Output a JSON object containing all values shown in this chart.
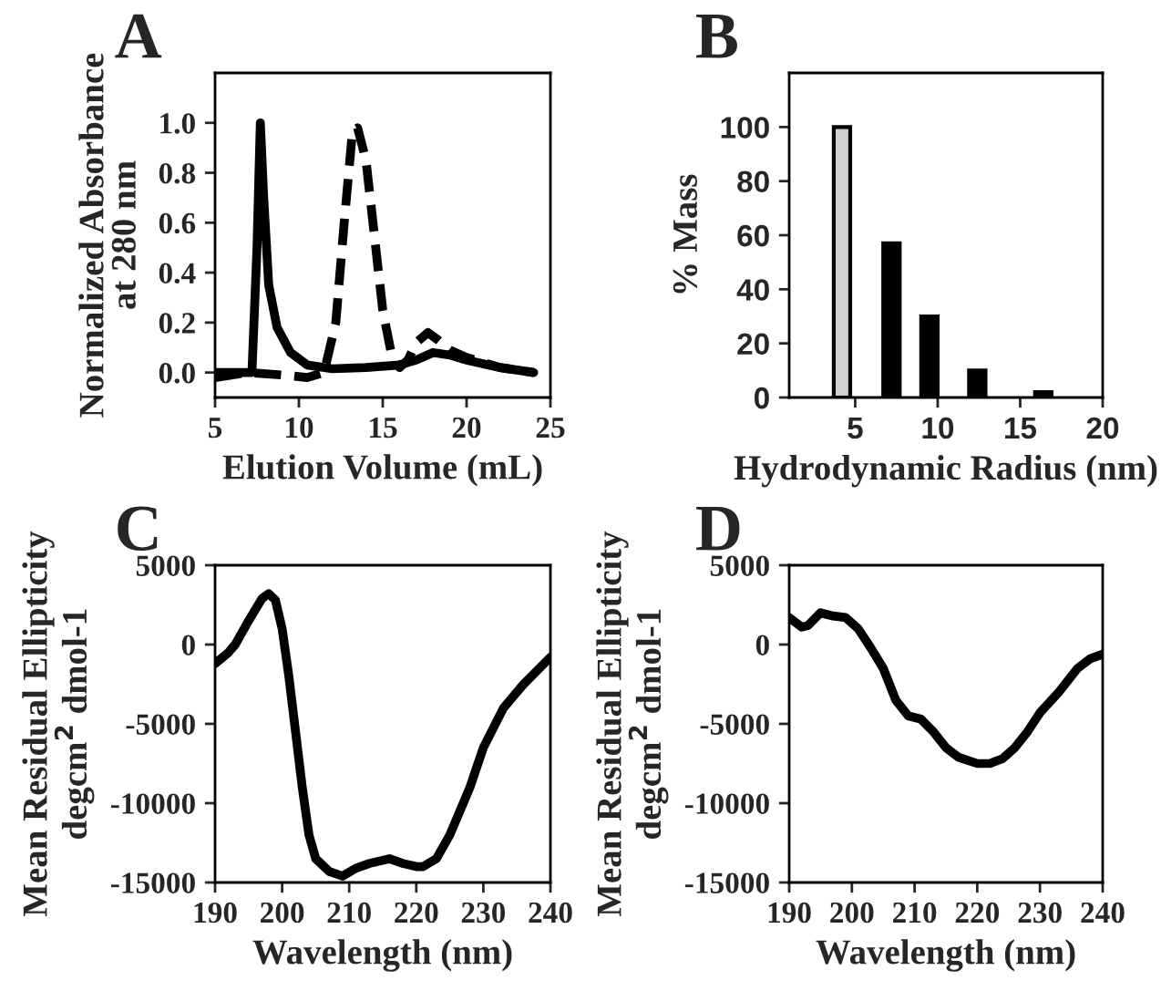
{
  "chart_data": [
    {
      "type": "line",
      "title": "A",
      "xlabel": "Elution Volume (mL)",
      "ylabel": "Normalized Absorbance\nat 280 nm",
      "xlim": [
        5,
        25
      ],
      "xticks": [
        5,
        10,
        15,
        20,
        25
      ],
      "ylim": [
        -0.1,
        1.2
      ],
      "yticks": [
        {
          "value": 0,
          "label": "0.0"
        },
        {
          "value": 0.2,
          "label": "0.2"
        },
        {
          "value": 0.4,
          "label": "0.4"
        },
        {
          "value": 0.6,
          "label": "0.6"
        },
        {
          "value": 0.8,
          "label": "0.8"
        },
        {
          "value": 1.0,
          "label": "1.0"
        }
      ],
      "legend": false,
      "grid": false,
      "series": [
        {
          "color": "#000000",
          "line_style": "solid",
          "x": [
            5,
            7.2,
            7.5,
            7.7,
            7.9,
            8.2,
            8.7,
            9.5,
            10.5,
            12,
            14,
            16,
            17,
            18,
            19,
            20,
            22,
            24
          ],
          "values": [
            0.0,
            0.0,
            0.5,
            1.0,
            0.7,
            0.35,
            0.18,
            0.08,
            0.03,
            0.015,
            0.02,
            0.03,
            0.05,
            0.08,
            0.07,
            0.05,
            0.02,
            0.0
          ]
        },
        {
          "color": "#000000",
          "line_style": "dashed",
          "x": [
            5,
            7,
            9,
            10.5,
            11.5,
            12.2,
            12.7,
            13.2,
            13.5,
            14,
            14.5,
            15,
            15.5,
            16,
            16.5,
            17,
            17.7,
            18.3,
            19,
            20,
            21,
            22,
            24
          ],
          "values": [
            -0.02,
            0.0,
            -0.01,
            -0.02,
            0.0,
            0.2,
            0.6,
            0.97,
            0.98,
            0.85,
            0.55,
            0.25,
            0.08,
            0.02,
            0.05,
            0.12,
            0.16,
            0.13,
            0.09,
            0.06,
            0.04,
            0.02,
            0.0
          ]
        }
      ]
    },
    {
      "type": "bar",
      "title": "B",
      "xlabel": "Hydrodynamic Radius (nm)",
      "ylabel": "% Mass",
      "xlim": [
        1,
        20
      ],
      "xticks": [
        5,
        10,
        15,
        20
      ],
      "ylim": [
        0,
        120
      ],
      "yticks": [
        0,
        20,
        40,
        60,
        80,
        100
      ],
      "legend": false,
      "grid": false,
      "series": [
        {
          "color": "#d0d0d0",
          "x": [
            4.2
          ],
          "values": [
            100
          ]
        },
        {
          "color": "#000000",
          "x": [
            7.2,
            9.5,
            12.4,
            16.4
          ],
          "values": [
            57,
            30,
            10,
            2
          ]
        }
      ]
    },
    {
      "type": "line",
      "title": "C",
      "xlabel": "Wavelength (nm)",
      "ylabel": "Mean Residual Ellipticity\ndegcm$^{2}$ dmol-1",
      "xlim": [
        190,
        240
      ],
      "xticks": [
        190,
        200,
        210,
        220,
        230,
        240
      ],
      "ylim": [
        -15000,
        5000
      ],
      "yticks": [
        -15000,
        -10000,
        -5000,
        0,
        5000
      ],
      "legend": false,
      "grid": false,
      "series": [
        {
          "color": "#000000",
          "line_style": "solid",
          "x": [
            190,
            192,
            193,
            195,
            197,
            198,
            199,
            200,
            201,
            202,
            203,
            204,
            205,
            207,
            209,
            211,
            213,
            216,
            218,
            220,
            221,
            223,
            225,
            228,
            230,
            233,
            236,
            240
          ],
          "values": [
            -1200,
            -500,
            0,
            1500,
            2900,
            3200,
            2800,
            1000,
            -2000,
            -5500,
            -9000,
            -12000,
            -13500,
            -14300,
            -14600,
            -14100,
            -13800,
            -13500,
            -13800,
            -14000,
            -14000,
            -13500,
            -12000,
            -9000,
            -6500,
            -4000,
            -2500,
            -800
          ]
        }
      ]
    },
    {
      "type": "line",
      "title": "D",
      "xlabel": "Wavelength (nm)",
      "ylabel": "Mean Residual Ellipticity\ndegcm$^{2}$ dmol-1",
      "xlim": [
        190,
        240
      ],
      "xticks": [
        190,
        200,
        210,
        220,
        230,
        240
      ],
      "ylim": [
        -15000,
        5000
      ],
      "yticks": [
        -15000,
        -10000,
        -5000,
        0,
        5000
      ],
      "legend": false,
      "grid": false,
      "series": [
        {
          "color": "#000000",
          "line_style": "solid",
          "x": [
            190,
            192,
            193,
            195,
            197,
            199,
            201,
            203,
            205,
            207,
            209,
            211,
            213,
            215,
            217,
            220,
            222,
            224,
            226,
            228,
            230,
            233,
            236,
            238,
            240
          ],
          "values": [
            1700,
            1100,
            1200,
            2000,
            1800,
            1700,
            1000,
            -200,
            -1500,
            -3500,
            -4500,
            -4700,
            -5500,
            -6500,
            -7100,
            -7500,
            -7500,
            -7200,
            -6500,
            -5500,
            -4300,
            -3000,
            -1500,
            -900,
            -600
          ]
        }
      ]
    }
  ]
}
